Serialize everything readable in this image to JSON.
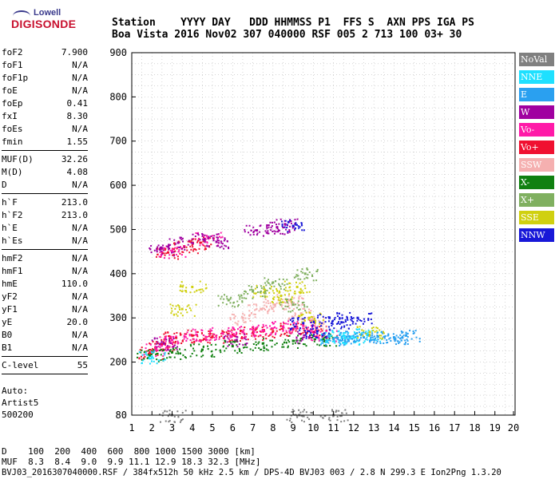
{
  "logo": {
    "line1": "Lowell",
    "line2": "DIGISONDE"
  },
  "header": {
    "row1": "Station    YYYY DAY   DDD HHMMSS P1  FFS S  AXN PPS IGA PS",
    "row2": "Boa Vista 2016 Nov02 307 040000 RSF 005 2 713 100 03+ 30"
  },
  "params_group1": [
    {
      "name": "foF2",
      "value": "7.900"
    },
    {
      "name": "foF1",
      "value": "N/A"
    },
    {
      "name": "foF1p",
      "value": "N/A"
    },
    {
      "name": "foE",
      "value": "N/A"
    },
    {
      "name": "foEp",
      "value": "0.41"
    },
    {
      "name": "fxI",
      "value": "8.30"
    },
    {
      "name": "foEs",
      "value": "N/A"
    },
    {
      "name": "fmin",
      "value": "1.55"
    }
  ],
  "params_group2": [
    {
      "name": "MUF(D)",
      "value": "32.26"
    },
    {
      "name": "M(D)",
      "value": "4.08"
    },
    {
      "name": "D",
      "value": "N/A"
    }
  ],
  "params_group3": [
    {
      "name": "h`F",
      "value": "213.0"
    },
    {
      "name": "h`F2",
      "value": "213.0"
    },
    {
      "name": "h`E",
      "value": "N/A"
    },
    {
      "name": "h`Es",
      "value": "N/A"
    }
  ],
  "params_group4": [
    {
      "name": "hmF2",
      "value": "N/A"
    },
    {
      "name": "hmF1",
      "value": "N/A"
    },
    {
      "name": "hmE",
      "value": "110.0"
    },
    {
      "name": "yF2",
      "value": "N/A"
    },
    {
      "name": "yF1",
      "value": "N/A"
    },
    {
      "name": "yE",
      "value": "20.0"
    },
    {
      "name": "B0",
      "value": "N/A"
    },
    {
      "name": "B1",
      "value": "N/A"
    }
  ],
  "params_group5": [
    {
      "name": "C-level",
      "value": "55"
    }
  ],
  "auto": {
    "line1": "Auto:",
    "line2": "Artist5",
    "line3": "500200"
  },
  "legend": [
    {
      "label": "NoVal",
      "color": "#808080"
    },
    {
      "label": "NNE",
      "color": "#1ee0ff"
    },
    {
      "label": "E",
      "color": "#2aa0f0"
    },
    {
      "label": "W",
      "color": "#a000a0"
    },
    {
      "label": "Vo-",
      "color": "#ff1aa8"
    },
    {
      "label": "Vo+",
      "color": "#f01030"
    },
    {
      "label": "SSW",
      "color": "#f5b0b0"
    },
    {
      "label": "X-",
      "color": "#108010"
    },
    {
      "label": "X+",
      "color": "#80b060"
    },
    {
      "label": "SSE",
      "color": "#d0d010"
    },
    {
      "label": "NNW",
      "color": "#1818d8"
    }
  ],
  "footer": {
    "line1": "D    100  200  400  600  800 1000 1500 3000 [km]",
    "line2": "MUF  8.3  8.4  9.0  9.9 11.1 12.9 18.3 32.3 [MHz]",
    "line3": "BVJ03_2016307040000.RSF / 384fx512h 50 kHz 2.5 km / DPS-4D BVJ03 003 / 2.8 N 299.3 E Ion2Png 1.3.20"
  },
  "chart_data": {
    "type": "scatter",
    "xlabel": "",
    "ylabel": "",
    "xlim": [
      1,
      20
    ],
    "ylim": [
      80,
      900
    ],
    "x_ticks": [
      1,
      2,
      3,
      4,
      5,
      6,
      7,
      8,
      9,
      10,
      11,
      12,
      13,
      14,
      15,
      16,
      17,
      18,
      19,
      20
    ],
    "y_ticks": [
      80,
      200,
      300,
      400,
      500,
      600,
      700,
      800,
      900
    ],
    "grid": true,
    "series": [
      {
        "name": "Vo+",
        "color": "#f01030",
        "points": [
          [
            1.9,
            222
          ],
          [
            2.5,
            240
          ],
          [
            3.2,
            255
          ],
          [
            4.0,
            260
          ],
          [
            5.0,
            258
          ],
          [
            6.0,
            262
          ],
          [
            7.0,
            266
          ],
          [
            8.0,
            270
          ],
          [
            9.0,
            275
          ],
          [
            10.0,
            268
          ],
          [
            2.8,
            448
          ],
          [
            3.6,
            462
          ],
          [
            4.4,
            470
          ]
        ]
      },
      {
        "name": "Vo-",
        "color": "#ff1aa8",
        "points": [
          [
            2.2,
            228
          ],
          [
            3.0,
            250
          ],
          [
            4.2,
            262
          ],
          [
            5.5,
            265
          ],
          [
            6.5,
            268
          ],
          [
            7.5,
            272
          ],
          [
            8.5,
            280
          ],
          [
            9.5,
            282
          ],
          [
            10.5,
            262
          ],
          [
            3.0,
            450
          ],
          [
            4.8,
            480
          ]
        ]
      },
      {
        "name": "W",
        "color": "#a000a0",
        "points": [
          [
            2.4,
            455
          ],
          [
            3.3,
            470
          ],
          [
            4.6,
            478
          ],
          [
            5.2,
            472
          ],
          [
            7.2,
            498
          ],
          [
            8.2,
            505
          ],
          [
            8.6,
            512
          ],
          [
            2.6,
            242
          ],
          [
            6.2,
            250
          ],
          [
            9.8,
            256
          ]
        ]
      },
      {
        "name": "X-",
        "color": "#108010",
        "points": [
          [
            1.9,
            215
          ],
          [
            3.0,
            222
          ],
          [
            4.5,
            228
          ],
          [
            6.0,
            236
          ],
          [
            7.5,
            242
          ],
          [
            9.0,
            248
          ],
          [
            10.5,
            252
          ]
        ]
      },
      {
        "name": "NNE",
        "color": "#1ee0ff",
        "points": [
          [
            2.0,
            212
          ],
          [
            10.8,
            258
          ],
          [
            11.5,
            260
          ],
          [
            12.0,
            255
          ],
          [
            12.7,
            262
          ]
        ]
      },
      {
        "name": "E",
        "color": "#2aa0f0",
        "points": [
          [
            11.0,
            252
          ],
          [
            11.8,
            258
          ],
          [
            12.5,
            256
          ],
          [
            13.2,
            258
          ],
          [
            14.0,
            256
          ],
          [
            14.6,
            260
          ]
        ]
      },
      {
        "name": "SSW",
        "color": "#f5b0b0",
        "points": [
          [
            6.5,
            300
          ],
          [
            7.4,
            320
          ],
          [
            8.1,
            330
          ],
          [
            8.8,
            340
          ],
          [
            9.4,
            310
          ],
          [
            10.0,
            290
          ]
        ]
      },
      {
        "name": "SSE",
        "color": "#d0d010",
        "points": [
          [
            3.5,
            320
          ],
          [
            4.0,
            370
          ],
          [
            7.6,
            360
          ],
          [
            8.4,
            350
          ],
          [
            9.2,
            370
          ],
          [
            9.8,
            300
          ],
          [
            12.8,
            268
          ]
        ]
      },
      {
        "name": "X+",
        "color": "#80b060",
        "points": [
          [
            5.8,
            340
          ],
          [
            7.0,
            360
          ],
          [
            8.0,
            380
          ],
          [
            9.0,
            330
          ],
          [
            9.6,
            400
          ]
        ]
      },
      {
        "name": "NNW",
        "color": "#1818d8",
        "points": [
          [
            9.5,
            288
          ],
          [
            10.2,
            270
          ],
          [
            10.8,
            300
          ],
          [
            11.4,
            290
          ],
          [
            12.2,
            300
          ],
          [
            9.0,
            508
          ]
        ]
      },
      {
        "name": "NoVal",
        "color": "#808080",
        "points": [
          [
            3.0,
            80
          ],
          [
            9.3,
            80
          ],
          [
            11.0,
            80
          ]
        ]
      }
    ]
  }
}
